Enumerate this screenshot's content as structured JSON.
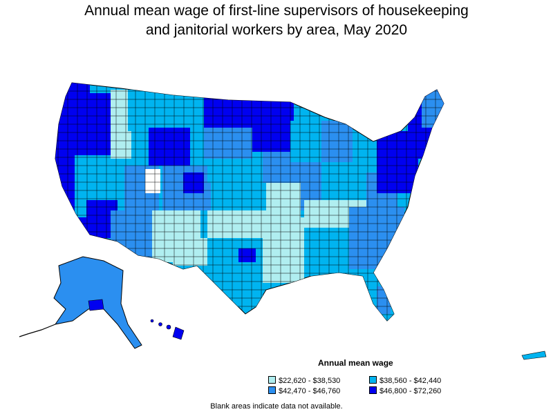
{
  "title_line1": "Annual mean wage of first-line supervisors of housekeeping",
  "title_line2": "and janitorial workers by area, May 2020",
  "legend": {
    "title": "Annual mean wage",
    "items": [
      {
        "label": "$22,620 - $38,530",
        "color": "#b0eef0"
      },
      {
        "label": "$38,560 - $42,440",
        "color": "#00b4f0"
      },
      {
        "label": "$42,470 - $46,760",
        "color": "#2b8ff0"
      },
      {
        "label": "$46,800 - $72,260",
        "color": "#0000f0"
      }
    ]
  },
  "footnote": "Blank areas indicate data not available."
}
